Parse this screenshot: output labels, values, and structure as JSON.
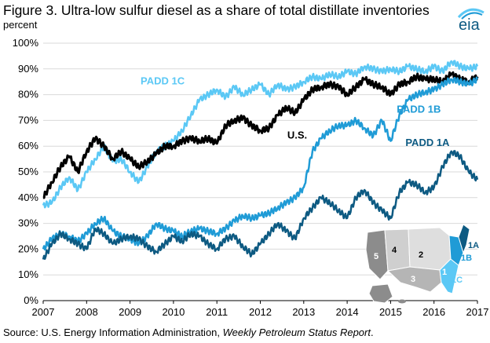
{
  "header": {
    "title": "Figure 3. Ultra-low sulfur diesel as a share of total distillate inventories",
    "unit": "percent",
    "logo_text": "eia"
  },
  "footer": {
    "source_prefix": "Source: U.S. Energy Information Administration, ",
    "source_italic": "Weekly Petroleum Status Report",
    "source_suffix": "."
  },
  "colors": {
    "padd1c": "#5bc8f5",
    "us": "#000000",
    "padd1b": "#1f9bd6",
    "padd1a": "#0d5a82",
    "grid": "#d9d9d9",
    "map_padd5": "#8c8c8c",
    "map_padd4": "#cfcfcf",
    "map_padd2": "#dedede",
    "map_padd3": "#b5b5b5",
    "map_alaska": "#8c8c8c"
  },
  "chart_data": {
    "type": "line",
    "xlim": [
      2007,
      2017
    ],
    "ylim": [
      0,
      100
    ],
    "x_ticks": [
      "2007",
      "2008",
      "2009",
      "2010",
      "2011",
      "2012",
      "2013",
      "2014",
      "2015",
      "2016",
      "2017"
    ],
    "y_ticks": [
      "0%",
      "10%",
      "20%",
      "30%",
      "40%",
      "50%",
      "60%",
      "70%",
      "80%",
      "90%",
      "100%"
    ],
    "grid": "horizontal",
    "series": [
      {
        "name": "PADD 1C",
        "color_key": "padd1c",
        "points": [
          [
            2007.0,
            37
          ],
          [
            2007.2,
            38
          ],
          [
            2007.4,
            44
          ],
          [
            2007.6,
            48
          ],
          [
            2007.8,
            43
          ],
          [
            2008.0,
            50
          ],
          [
            2008.2,
            55
          ],
          [
            2008.4,
            60
          ],
          [
            2008.6,
            54
          ],
          [
            2008.8,
            55
          ],
          [
            2009.0,
            50
          ],
          [
            2009.2,
            46
          ],
          [
            2009.4,
            52
          ],
          [
            2009.6,
            58
          ],
          [
            2009.8,
            60
          ],
          [
            2010.0,
            62
          ],
          [
            2010.2,
            66
          ],
          [
            2010.4,
            72
          ],
          [
            2010.6,
            78
          ],
          [
            2010.8,
            80
          ],
          [
            2011.0,
            82
          ],
          [
            2011.2,
            79
          ],
          [
            2011.4,
            83
          ],
          [
            2011.6,
            80
          ],
          [
            2011.8,
            82
          ],
          [
            2012.0,
            84
          ],
          [
            2012.2,
            80
          ],
          [
            2012.4,
            84
          ],
          [
            2012.6,
            82
          ],
          [
            2012.8,
            83
          ],
          [
            2013.0,
            85
          ],
          [
            2013.2,
            87
          ],
          [
            2013.4,
            86
          ],
          [
            2013.6,
            88
          ],
          [
            2013.8,
            87
          ],
          [
            2014.0,
            89
          ],
          [
            2014.2,
            88
          ],
          [
            2014.4,
            91
          ],
          [
            2014.6,
            90
          ],
          [
            2014.8,
            89
          ],
          [
            2015.0,
            90
          ],
          [
            2015.2,
            89
          ],
          [
            2015.4,
            91
          ],
          [
            2015.6,
            90
          ],
          [
            2015.8,
            89
          ],
          [
            2016.0,
            91
          ],
          [
            2016.2,
            89
          ],
          [
            2016.4,
            93
          ],
          [
            2016.6,
            91
          ],
          [
            2016.8,
            90
          ],
          [
            2017.0,
            91
          ]
        ]
      },
      {
        "name": "U.S.",
        "color_key": "us",
        "points": [
          [
            2007.0,
            40
          ],
          [
            2007.2,
            46
          ],
          [
            2007.4,
            52
          ],
          [
            2007.6,
            56
          ],
          [
            2007.8,
            50
          ],
          [
            2008.0,
            58
          ],
          [
            2008.2,
            63
          ],
          [
            2008.4,
            60
          ],
          [
            2008.6,
            55
          ],
          [
            2008.8,
            58
          ],
          [
            2009.0,
            55
          ],
          [
            2009.2,
            52
          ],
          [
            2009.4,
            54
          ],
          [
            2009.6,
            57
          ],
          [
            2009.8,
            60
          ],
          [
            2010.0,
            60
          ],
          [
            2010.2,
            62
          ],
          [
            2010.4,
            63
          ],
          [
            2010.6,
            62
          ],
          [
            2010.8,
            63
          ],
          [
            2011.0,
            61
          ],
          [
            2011.2,
            68
          ],
          [
            2011.4,
            70
          ],
          [
            2011.6,
            71
          ],
          [
            2011.8,
            68
          ],
          [
            2012.0,
            66
          ],
          [
            2012.2,
            67
          ],
          [
            2012.4,
            72
          ],
          [
            2012.6,
            75
          ],
          [
            2012.8,
            73
          ],
          [
            2013.0,
            78
          ],
          [
            2013.2,
            82
          ],
          [
            2013.4,
            83
          ],
          [
            2013.6,
            84
          ],
          [
            2013.8,
            83
          ],
          [
            2014.0,
            80
          ],
          [
            2014.2,
            83
          ],
          [
            2014.4,
            86
          ],
          [
            2014.6,
            84
          ],
          [
            2014.8,
            83
          ],
          [
            2015.0,
            80
          ],
          [
            2015.2,
            84
          ],
          [
            2015.4,
            85
          ],
          [
            2015.6,
            87
          ],
          [
            2015.8,
            86
          ],
          [
            2016.0,
            86
          ],
          [
            2016.2,
            85
          ],
          [
            2016.4,
            88
          ],
          [
            2016.6,
            86
          ],
          [
            2016.8,
            85
          ],
          [
            2017.0,
            87
          ]
        ]
      },
      {
        "name": "PADD 1B",
        "color_key": "padd1b",
        "points": [
          [
            2007.0,
            20
          ],
          [
            2007.2,
            24
          ],
          [
            2007.4,
            26
          ],
          [
            2007.6,
            25
          ],
          [
            2007.8,
            23
          ],
          [
            2008.0,
            26
          ],
          [
            2008.2,
            30
          ],
          [
            2008.4,
            32
          ],
          [
            2008.6,
            27
          ],
          [
            2008.8,
            25
          ],
          [
            2009.0,
            24
          ],
          [
            2009.2,
            22
          ],
          [
            2009.4,
            25
          ],
          [
            2009.6,
            30
          ],
          [
            2009.8,
            28
          ],
          [
            2010.0,
            27
          ],
          [
            2010.2,
            25
          ],
          [
            2010.4,
            27
          ],
          [
            2010.6,
            28
          ],
          [
            2010.8,
            27
          ],
          [
            2011.0,
            26
          ],
          [
            2011.2,
            28
          ],
          [
            2011.4,
            31
          ],
          [
            2011.6,
            33
          ],
          [
            2011.8,
            32
          ],
          [
            2012.0,
            33
          ],
          [
            2012.2,
            34
          ],
          [
            2012.4,
            36
          ],
          [
            2012.6,
            38
          ],
          [
            2012.8,
            40
          ],
          [
            2013.0,
            44
          ],
          [
            2013.2,
            58
          ],
          [
            2013.4,
            63
          ],
          [
            2013.6,
            66
          ],
          [
            2013.8,
            68
          ],
          [
            2014.0,
            68
          ],
          [
            2014.2,
            70
          ],
          [
            2014.4,
            67
          ],
          [
            2014.6,
            64
          ],
          [
            2014.8,
            70
          ],
          [
            2015.0,
            62
          ],
          [
            2015.2,
            72
          ],
          [
            2015.4,
            78
          ],
          [
            2015.6,
            80
          ],
          [
            2015.8,
            81
          ],
          [
            2016.0,
            82
          ],
          [
            2016.2,
            84
          ],
          [
            2016.4,
            86
          ],
          [
            2016.6,
            85
          ],
          [
            2016.8,
            84
          ],
          [
            2017.0,
            86
          ]
        ]
      },
      {
        "name": "PADD 1A",
        "color_key": "padd1a",
        "points": [
          [
            2007.0,
            16
          ],
          [
            2007.2,
            22
          ],
          [
            2007.4,
            26
          ],
          [
            2007.6,
            24
          ],
          [
            2007.8,
            22
          ],
          [
            2008.0,
            20
          ],
          [
            2008.2,
            28
          ],
          [
            2008.4,
            26
          ],
          [
            2008.6,
            22
          ],
          [
            2008.8,
            24
          ],
          [
            2009.0,
            25
          ],
          [
            2009.2,
            24
          ],
          [
            2009.4,
            21
          ],
          [
            2009.6,
            19
          ],
          [
            2009.8,
            22
          ],
          [
            2010.0,
            25
          ],
          [
            2010.2,
            23
          ],
          [
            2010.4,
            26
          ],
          [
            2010.6,
            25
          ],
          [
            2010.8,
            22
          ],
          [
            2011.0,
            20
          ],
          [
            2011.2,
            24
          ],
          [
            2011.4,
            25
          ],
          [
            2011.6,
            21
          ],
          [
            2011.8,
            18
          ],
          [
            2012.0,
            22
          ],
          [
            2012.2,
            26
          ],
          [
            2012.4,
            30
          ],
          [
            2012.6,
            27
          ],
          [
            2012.8,
            24
          ],
          [
            2013.0,
            32
          ],
          [
            2013.2,
            36
          ],
          [
            2013.4,
            40
          ],
          [
            2013.6,
            38
          ],
          [
            2013.8,
            35
          ],
          [
            2014.0,
            32
          ],
          [
            2014.2,
            40
          ],
          [
            2014.4,
            43
          ],
          [
            2014.6,
            38
          ],
          [
            2014.8,
            35
          ],
          [
            2015.0,
            32
          ],
          [
            2015.2,
            42
          ],
          [
            2015.4,
            46
          ],
          [
            2015.6,
            45
          ],
          [
            2015.8,
            42
          ],
          [
            2016.0,
            44
          ],
          [
            2016.2,
            52
          ],
          [
            2016.4,
            58
          ],
          [
            2016.6,
            56
          ],
          [
            2016.8,
            50
          ],
          [
            2017.0,
            47
          ]
        ]
      }
    ],
    "series_labels": [
      {
        "text": "PADD 1C",
        "color_key": "padd1c",
        "x": 2009.75,
        "y": 84
      },
      {
        "text": "U.S.",
        "color_key": "us",
        "x": 2012.85,
        "y": 63
      },
      {
        "text": "PADD 1B",
        "color_key": "padd1b",
        "x": 2015.65,
        "y": 73
      },
      {
        "text": "PADD 1A",
        "color_key": "padd1a",
        "x": 2015.85,
        "y": 60
      }
    ],
    "map_labels": [
      "5",
      "4",
      "2",
      "3",
      "1",
      "1A",
      "1B",
      "1C"
    ]
  }
}
